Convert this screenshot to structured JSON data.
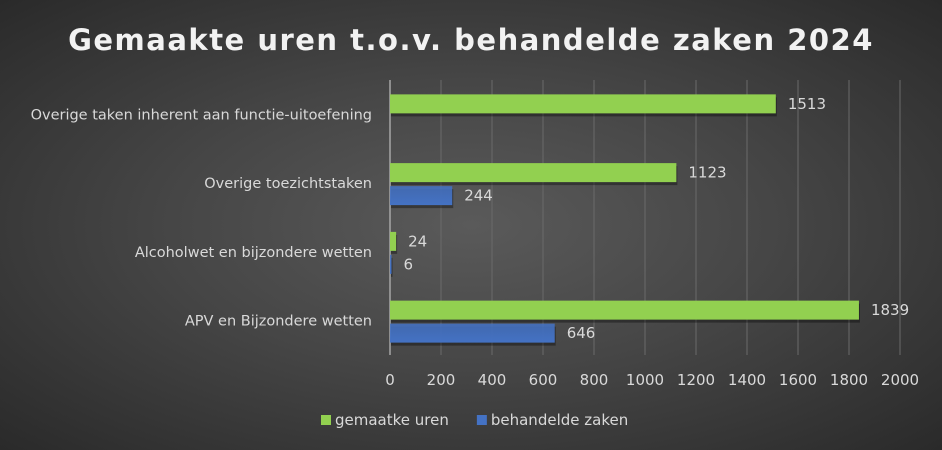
{
  "chart_data": {
    "type": "bar",
    "orientation": "horizontal",
    "title": "Gemaakte uren t.o.v. behandelde zaken 2024",
    "categories": [
      "APV en Bijzondere wetten",
      "Alcoholwet en bijzondere wetten",
      "Overige toezichtstaken",
      "Overige taken inherent aan functie-uitoefening"
    ],
    "series": [
      {
        "name": "gemaatke uren",
        "color": "#92d050",
        "values": [
          1839,
          24,
          1123,
          1513
        ]
      },
      {
        "name": "behandelde zaken",
        "color": "#4472c4",
        "values": [
          646,
          6,
          244,
          null
        ]
      }
    ],
    "xlim": [
      0,
      2000
    ],
    "xticks": [
      0,
      200,
      400,
      600,
      800,
      1000,
      1200,
      1400,
      1600,
      1800,
      2000
    ],
    "grid": true,
    "data_labels": true,
    "legend": "bottom"
  }
}
